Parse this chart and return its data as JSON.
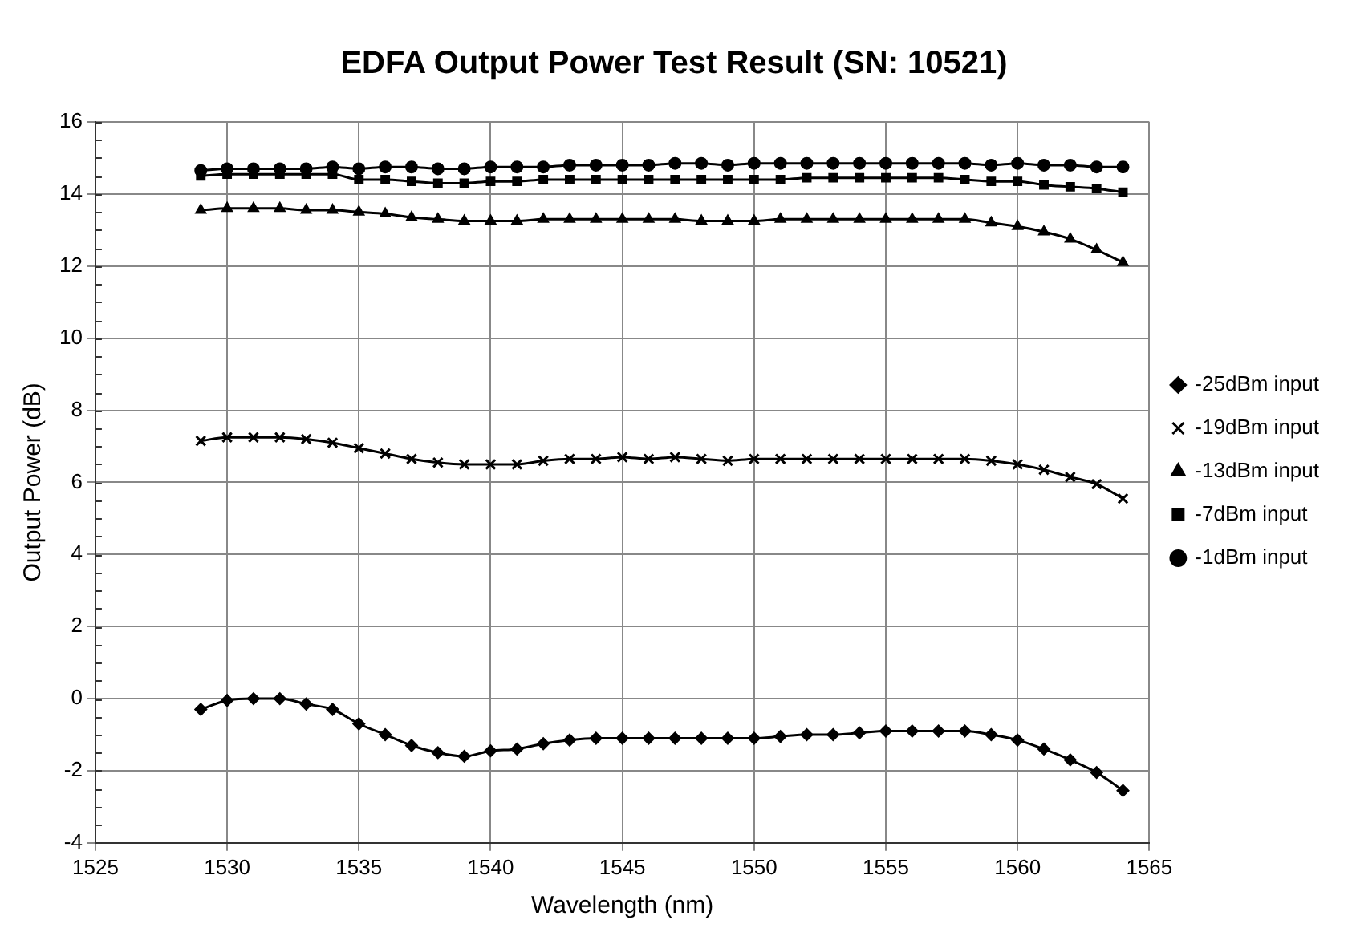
{
  "chart_data": {
    "type": "line",
    "title": "EDFA Output Power Test Result (SN: 10521)",
    "xlabel": "Wavelength (nm)",
    "ylabel": "Output Power (dB)",
    "x": [
      1529,
      1530,
      1531,
      1532,
      1533,
      1534,
      1535,
      1536,
      1537,
      1538,
      1539,
      1540,
      1541,
      1542,
      1543,
      1544,
      1545,
      1546,
      1547,
      1548,
      1549,
      1550,
      1551,
      1552,
      1553,
      1554,
      1555,
      1556,
      1557,
      1558,
      1559,
      1560,
      1561,
      1562,
      1563,
      1564
    ],
    "series": [
      {
        "name": "-25dBm input",
        "color": "#000000",
        "marker": "diamond",
        "values": [
          -0.3,
          -0.05,
          0,
          0,
          -0.15,
          -0.3,
          -0.7,
          -1,
          -1.3,
          -1.5,
          -1.6,
          -1.45,
          -1.4,
          -1.25,
          -1.15,
          -1.1,
          -1.1,
          -1.1,
          -1.1,
          -1.1,
          -1.1,
          -1.1,
          -1.05,
          -1,
          -1,
          -0.95,
          -0.9,
          -0.9,
          -0.9,
          -0.9,
          -1,
          -1.15,
          -1.4,
          -1.7,
          -2.05,
          -2.55
        ]
      },
      {
        "name": "-19dBm input",
        "color": "#000000",
        "marker": "cross",
        "values": [
          7.15,
          7.25,
          7.25,
          7.25,
          7.2,
          7.1,
          6.95,
          6.8,
          6.65,
          6.55,
          6.5,
          6.5,
          6.5,
          6.6,
          6.65,
          6.65,
          6.7,
          6.65,
          6.7,
          6.65,
          6.6,
          6.65,
          6.65,
          6.65,
          6.65,
          6.65,
          6.65,
          6.65,
          6.65,
          6.65,
          6.6,
          6.5,
          6.35,
          6.15,
          5.95,
          5.55
        ]
      },
      {
        "name": "-13dBm input",
        "color": "#000000",
        "marker": "triangle",
        "values": [
          13.55,
          13.6,
          13.6,
          13.6,
          13.55,
          13.55,
          13.5,
          13.45,
          13.35,
          13.3,
          13.25,
          13.25,
          13.25,
          13.3,
          13.3,
          13.3,
          13.3,
          13.3,
          13.3,
          13.25,
          13.25,
          13.25,
          13.3,
          13.3,
          13.3,
          13.3,
          13.3,
          13.3,
          13.3,
          13.3,
          13.2,
          13.1,
          12.95,
          12.75,
          12.45,
          12.1
        ]
      },
      {
        "name": "-7dBm input",
        "color": "#000000",
        "marker": "square",
        "values": [
          14.5,
          14.55,
          14.55,
          14.55,
          14.55,
          14.55,
          14.4,
          14.4,
          14.35,
          14.3,
          14.3,
          14.35,
          14.35,
          14.4,
          14.4,
          14.4,
          14.4,
          14.4,
          14.4,
          14.4,
          14.4,
          14.4,
          14.4,
          14.45,
          14.45,
          14.45,
          14.45,
          14.45,
          14.45,
          14.4,
          14.35,
          14.35,
          14.25,
          14.2,
          14.15,
          14.05
        ]
      },
      {
        "name": "-1dBm input",
        "color": "#000000",
        "marker": "circle",
        "values": [
          14.65,
          14.7,
          14.7,
          14.7,
          14.7,
          14.75,
          14.7,
          14.75,
          14.75,
          14.7,
          14.7,
          14.75,
          14.75,
          14.75,
          14.8,
          14.8,
          14.8,
          14.8,
          14.85,
          14.85,
          14.8,
          14.85,
          14.85,
          14.85,
          14.85,
          14.85,
          14.85,
          14.85,
          14.85,
          14.85,
          14.8,
          14.85,
          14.8,
          14.8,
          14.75,
          14.75
        ]
      }
    ],
    "xlim": [
      1525,
      1565
    ],
    "xticks": [
      1525,
      1530,
      1535,
      1540,
      1545,
      1550,
      1555,
      1560,
      1565
    ],
    "ylim": [
      -4,
      16
    ],
    "yticks": [
      -4,
      -2,
      0,
      2,
      4,
      6,
      8,
      10,
      12,
      14,
      16
    ],
    "grid": true,
    "legend": "right",
    "line_style": "solid"
  }
}
